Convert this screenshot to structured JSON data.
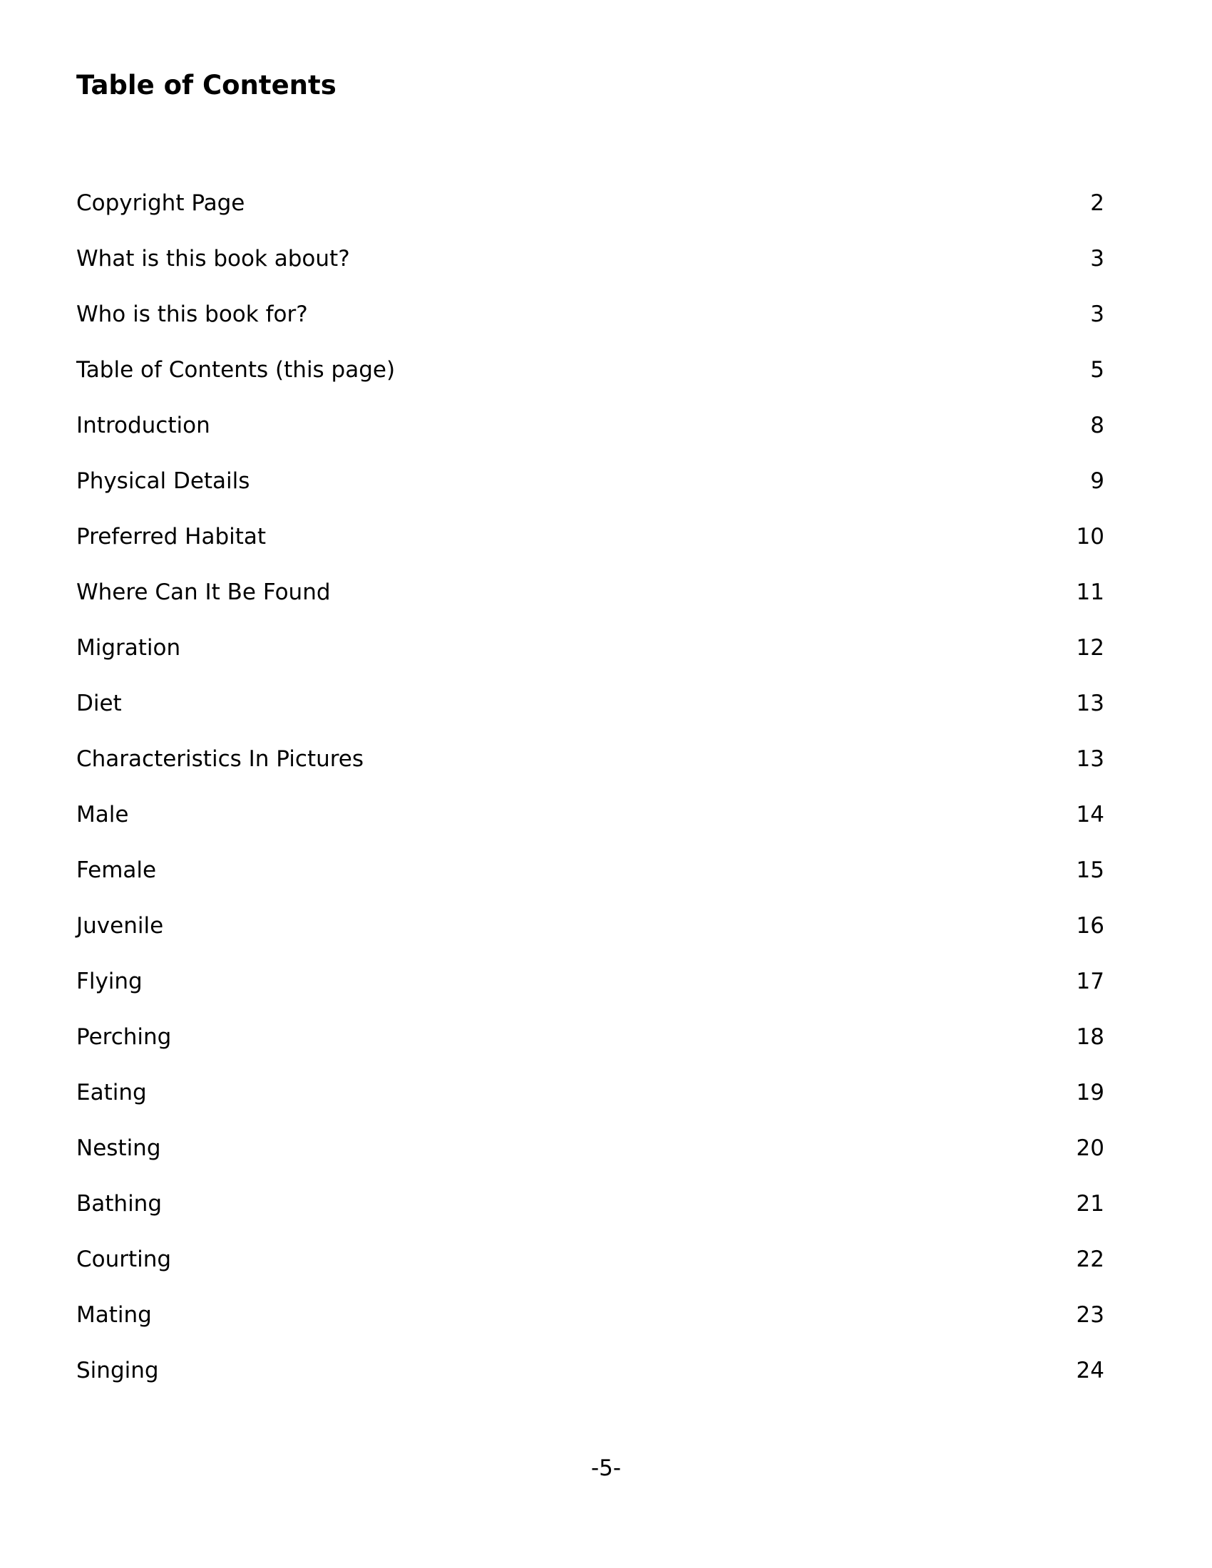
{
  "title": "Table of Contents",
  "entries": [
    {
      "label": "Copyright Page",
      "page": "2"
    },
    {
      "label": "What is this book about?",
      "page": "3"
    },
    {
      "label": "Who is this book for?",
      "page": "3"
    },
    {
      "label": "Table of Contents (this page)",
      "page": "5"
    },
    {
      "label": "Introduction",
      "page": "8"
    },
    {
      "label": "Physical Details",
      "page": "9"
    },
    {
      "label": "Preferred Habitat",
      "page": "10"
    },
    {
      "label": "Where Can It Be Found",
      "page": "11"
    },
    {
      "label": "Migration",
      "page": "12"
    },
    {
      "label": "Diet",
      "page": "13"
    },
    {
      "label": "Characteristics In Pictures",
      "page": "13"
    },
    {
      "label": "Male",
      "page": "14"
    },
    {
      "label": "Female",
      "page": "15"
    },
    {
      "label": "Juvenile",
      "page": "16"
    },
    {
      "label": "Flying",
      "page": "17"
    },
    {
      "label": "Perching",
      "page": "18"
    },
    {
      "label": "Eating",
      "page": "19"
    },
    {
      "label": "Nesting",
      "page": "20"
    },
    {
      "label": "Bathing",
      "page": "21"
    },
    {
      "label": "Courting",
      "page": "22"
    },
    {
      "label": "Mating",
      "page": "23"
    },
    {
      "label": "Singing",
      "page": "24"
    }
  ],
  "footer": {
    "page_number": "-5-"
  }
}
